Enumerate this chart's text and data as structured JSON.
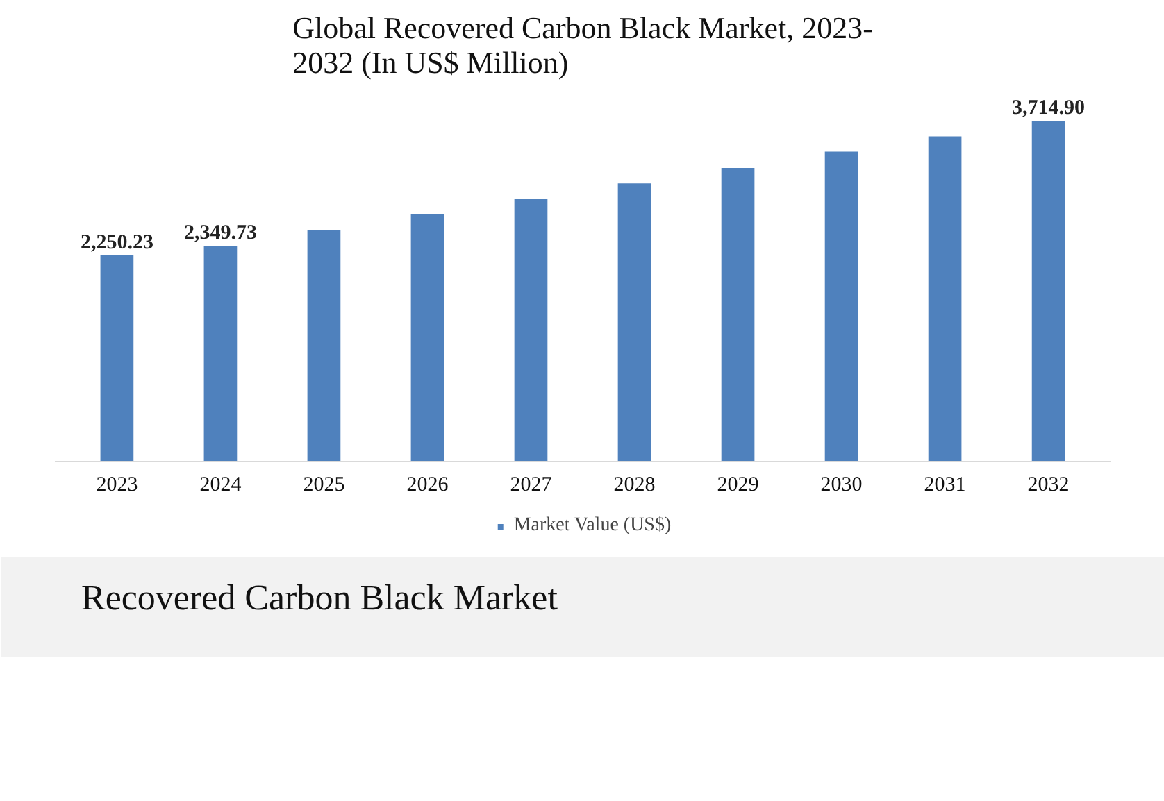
{
  "chart_data": {
    "type": "bar",
    "title": "Global Recovered Carbon Black Market, 2023-\n2032 (In US$ Million)",
    "categories": [
      "2023",
      "2024",
      "2025",
      "2026",
      "2027",
      "2028",
      "2029",
      "2030",
      "2031",
      "2032"
    ],
    "series": [
      {
        "name": "Market Value (US$)",
        "color": "#4f81bd",
        "values": [
          2250.23,
          2349.73,
          2527,
          2695,
          2864,
          3032,
          3201,
          3378,
          3546,
          3714.9
        ],
        "value_labels": [
          "2,250.23",
          "2,349.73",
          null,
          null,
          null,
          null,
          null,
          null,
          null,
          "3,714.90"
        ]
      }
    ],
    "tick_labels": "x",
    "legend": "bottom",
    "annotations": [
      "Recovered Carbon Black Market"
    ]
  }
}
